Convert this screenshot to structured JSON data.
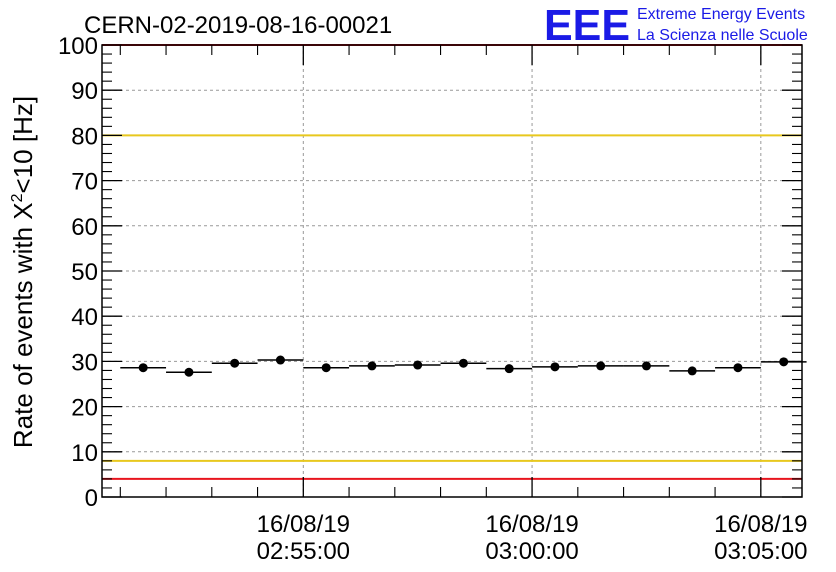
{
  "chart_data": {
    "type": "scatter",
    "title": "CERN-02-2019-08-16-00021",
    "ylabel_main": "Rate of events with X",
    "ylabel_sup": "2",
    "ylabel_tail": "<10 [Hz]",
    "ylim": [
      0,
      100
    ],
    "yticks": [
      0,
      10,
      20,
      30,
      40,
      50,
      60,
      70,
      80,
      90,
      100
    ],
    "xlim_minutes": [
      -9.4,
      5.9
    ],
    "xticks": [
      {
        "minute": -5,
        "date": "16/08/19",
        "time": "02:55:00"
      },
      {
        "minute": 0,
        "date": "16/08/19",
        "time": "03:00:00"
      },
      {
        "minute": 5,
        "date": "16/08/19",
        "time": "03:05:00"
      }
    ],
    "grid": true,
    "reference_lines": [
      {
        "value": 100,
        "color": "#e8141e"
      },
      {
        "value": 80,
        "color": "#e8c81e"
      },
      {
        "value": 8,
        "color": "#e8c81e"
      },
      {
        "value": 4,
        "color": "#e8141e"
      }
    ],
    "points": [
      {
        "x": -8.5,
        "y": 28.6,
        "xerr": 0.5
      },
      {
        "x": -7.5,
        "y": 27.6,
        "xerr": 0.5
      },
      {
        "x": -6.5,
        "y": 29.6,
        "xerr": 0.5
      },
      {
        "x": -5.5,
        "y": 30.3,
        "xerr": 0.5
      },
      {
        "x": -4.5,
        "y": 28.6,
        "xerr": 0.5
      },
      {
        "x": -3.5,
        "y": 29.0,
        "xerr": 0.5
      },
      {
        "x": -2.5,
        "y": 29.2,
        "xerr": 0.5
      },
      {
        "x": -1.5,
        "y": 29.6,
        "xerr": 0.5
      },
      {
        "x": -0.5,
        "y": 28.4,
        "xerr": 0.5
      },
      {
        "x": 0.5,
        "y": 28.8,
        "xerr": 0.5
      },
      {
        "x": 1.5,
        "y": 29.0,
        "xerr": 0.5
      },
      {
        "x": 2.5,
        "y": 29.0,
        "xerr": 0.5
      },
      {
        "x": 3.5,
        "y": 27.9,
        "xerr": 0.5
      },
      {
        "x": 4.5,
        "y": 28.6,
        "xerr": 0.5
      },
      {
        "x": 5.5,
        "y": 29.9,
        "xerr": 0.5
      }
    ]
  },
  "logo": {
    "mark": "EEE",
    "line1": "Extreme Energy Events",
    "line2": "La Scienza nelle Scuole",
    "color": "#1a1ae6"
  }
}
